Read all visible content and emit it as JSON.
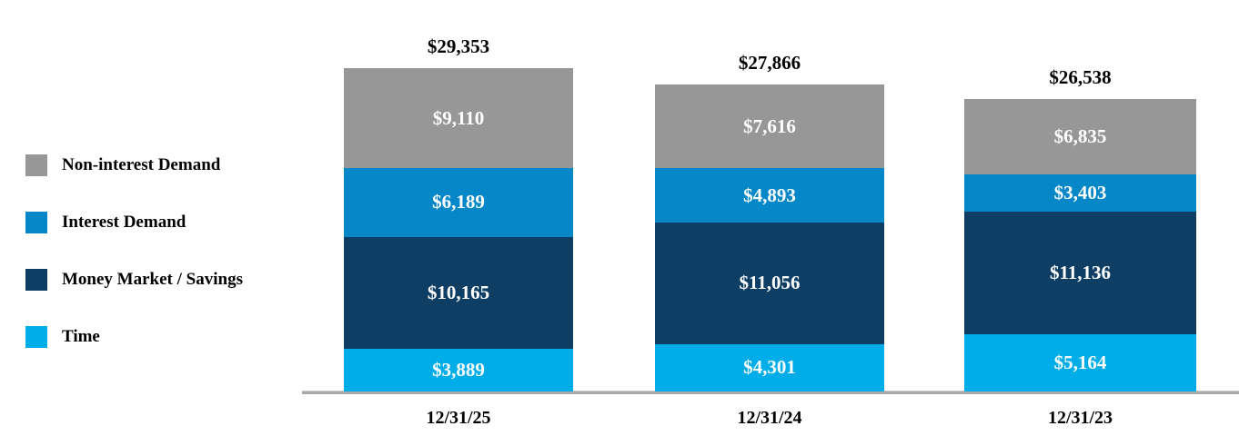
{
  "legend": {
    "items": [
      {
        "label": "Non-interest Demand",
        "color": "#979797"
      },
      {
        "label": "Interest Demand",
        "color": "#0687C8"
      },
      {
        "label": "Money Market / Savings",
        "color": "#0E3E64"
      },
      {
        "label": "Time",
        "color": "#00ADE9"
      }
    ]
  },
  "chart_data": {
    "type": "bar",
    "stacked": true,
    "stack_order": "top-to-bottom",
    "categories": [
      "12/31/25",
      "12/31/24",
      "12/31/23"
    ],
    "series": [
      {
        "name": "Non-interest Demand",
        "color": "#979797",
        "values": [
          9110,
          7616,
          6835
        ]
      },
      {
        "name": "Interest Demand",
        "color": "#0687C8",
        "values": [
          6189,
          4893,
          3403
        ]
      },
      {
        "name": "Money Market / Savings",
        "color": "#0E3E64",
        "values": [
          10165,
          11056,
          11136
        ]
      },
      {
        "name": "Time",
        "color": "#00ADE9",
        "values": [
          3889,
          4301,
          5164
        ]
      }
    ],
    "totals": [
      29353,
      27866,
      26538
    ],
    "total_labels": [
      "$29,353",
      "$27,866",
      "$26,538"
    ],
    "value_label_format": "$#,###",
    "axis_line_color": "#a9a9a9",
    "grid": false,
    "legend_position": "left",
    "value_labels_inside_segments": true
  }
}
